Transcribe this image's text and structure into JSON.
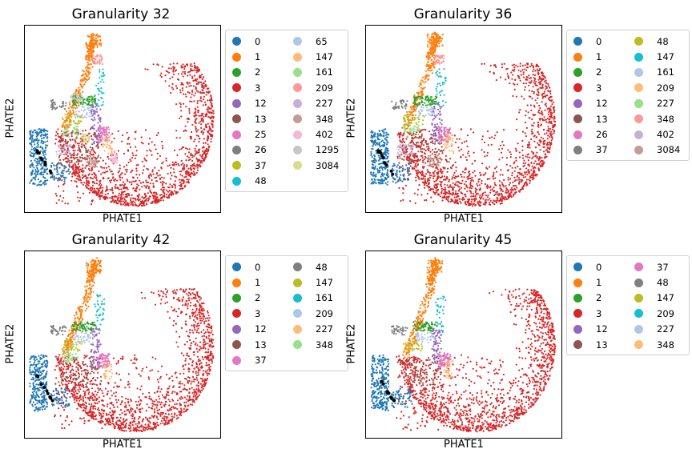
{
  "chart_data": [
    {
      "type": "scatter",
      "title": "Granularity 32",
      "xlabel": "PHATE1",
      "ylabel": "PHATE2",
      "legend": {
        "placement": "outside-right",
        "columns": 2
      },
      "series": [
        {
          "name": "0",
          "color": "#1f77b4"
        },
        {
          "name": "1",
          "color": "#ff7f0e"
        },
        {
          "name": "2",
          "color": "#2ca02c"
        },
        {
          "name": "3",
          "color": "#d62728"
        },
        {
          "name": "12",
          "color": "#9467bd"
        },
        {
          "name": "13",
          "color": "#8c564b"
        },
        {
          "name": "25",
          "color": "#e377c2"
        },
        {
          "name": "26",
          "color": "#7f7f7f"
        },
        {
          "name": "37",
          "color": "#bcbd22"
        },
        {
          "name": "48",
          "color": "#17becf"
        },
        {
          "name": "65",
          "color": "#aec7e8"
        },
        {
          "name": "147",
          "color": "#ffbb78"
        },
        {
          "name": "161",
          "color": "#98df8a"
        },
        {
          "name": "209",
          "color": "#ff9896"
        },
        {
          "name": "227",
          "color": "#c5b0d5"
        },
        {
          "name": "348",
          "color": "#c49c94"
        },
        {
          "name": "402",
          "color": "#f7b6d2"
        },
        {
          "name": "1295",
          "color": "#c7c7c7"
        },
        {
          "name": "3084",
          "color": "#dbdb8d"
        }
      ]
    },
    {
      "type": "scatter",
      "title": "Granularity 36",
      "xlabel": "PHATE1",
      "ylabel": "PHATE2",
      "legend": {
        "placement": "outside-right",
        "columns": 2
      },
      "series": [
        {
          "name": "0",
          "color": "#1f77b4"
        },
        {
          "name": "1",
          "color": "#ff7f0e"
        },
        {
          "name": "2",
          "color": "#2ca02c"
        },
        {
          "name": "3",
          "color": "#d62728"
        },
        {
          "name": "12",
          "color": "#9467bd"
        },
        {
          "name": "13",
          "color": "#8c564b"
        },
        {
          "name": "26",
          "color": "#e377c2"
        },
        {
          "name": "37",
          "color": "#7f7f7f"
        },
        {
          "name": "48",
          "color": "#bcbd22"
        },
        {
          "name": "147",
          "color": "#17becf"
        },
        {
          "name": "161",
          "color": "#aec7e8"
        },
        {
          "name": "209",
          "color": "#ffbb78"
        },
        {
          "name": "227",
          "color": "#98df8a"
        },
        {
          "name": "348",
          "color": "#ff9896"
        },
        {
          "name": "402",
          "color": "#c5b0d5"
        },
        {
          "name": "3084",
          "color": "#c49c94"
        }
      ]
    },
    {
      "type": "scatter",
      "title": "Granularity 42",
      "xlabel": "PHATE1",
      "ylabel": "PHATE2",
      "legend": {
        "placement": "outside-right",
        "columns": 2
      },
      "series": [
        {
          "name": "0",
          "color": "#1f77b4"
        },
        {
          "name": "1",
          "color": "#ff7f0e"
        },
        {
          "name": "2",
          "color": "#2ca02c"
        },
        {
          "name": "3",
          "color": "#d62728"
        },
        {
          "name": "12",
          "color": "#9467bd"
        },
        {
          "name": "13",
          "color": "#8c564b"
        },
        {
          "name": "37",
          "color": "#e377c2"
        },
        {
          "name": "48",
          "color": "#7f7f7f"
        },
        {
          "name": "147",
          "color": "#bcbd22"
        },
        {
          "name": "161",
          "color": "#17becf"
        },
        {
          "name": "209",
          "color": "#aec7e8"
        },
        {
          "name": "227",
          "color": "#ffbb78"
        },
        {
          "name": "348",
          "color": "#98df8a"
        }
      ]
    },
    {
      "type": "scatter",
      "title": "Granularity 45",
      "xlabel": "PHATE1",
      "ylabel": "PHATE2",
      "legend": {
        "placement": "outside-right",
        "columns": 2
      },
      "series": [
        {
          "name": "0",
          "color": "#1f77b4"
        },
        {
          "name": "1",
          "color": "#ff7f0e"
        },
        {
          "name": "2",
          "color": "#2ca02c"
        },
        {
          "name": "3",
          "color": "#d62728"
        },
        {
          "name": "12",
          "color": "#9467bd"
        },
        {
          "name": "13",
          "color": "#8c564b"
        },
        {
          "name": "37",
          "color": "#e377c2"
        },
        {
          "name": "48",
          "color": "#7f7f7f"
        },
        {
          "name": "147",
          "color": "#bcbd22"
        },
        {
          "name": "209",
          "color": "#17becf"
        },
        {
          "name": "227",
          "color": "#aec7e8"
        },
        {
          "name": "348",
          "color": "#ffbb78"
        }
      ]
    }
  ]
}
